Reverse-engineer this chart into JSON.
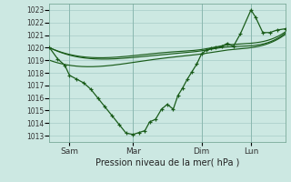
{
  "xlabel": "Pression niveau de la mer( hPa )",
  "background_color": "#cce8e2",
  "grid_color": "#a8ccc8",
  "line_color": "#1a5c1a",
  "ylim": [
    1012.5,
    1023.5
  ],
  "yticks": [
    1013,
    1014,
    1015,
    1016,
    1017,
    1018,
    1019,
    1020,
    1021,
    1022,
    1023
  ],
  "xtick_labels": [
    "Sam",
    "Mar",
    "Dim",
    "Lun"
  ],
  "xtick_positions": [
    0.085,
    0.355,
    0.645,
    0.855
  ],
  "vline_x": [
    0.085,
    0.355,
    0.645,
    0.855
  ],
  "main_x": [
    0.0,
    0.035,
    0.065,
    0.085,
    0.115,
    0.145,
    0.175,
    0.205,
    0.235,
    0.265,
    0.295,
    0.325,
    0.355,
    0.38,
    0.405,
    0.425,
    0.45,
    0.475,
    0.5,
    0.525,
    0.545,
    0.565,
    0.585,
    0.605,
    0.625,
    0.645,
    0.665,
    0.685,
    0.705,
    0.73,
    0.755,
    0.78,
    0.81,
    0.855,
    0.875,
    0.905,
    0.935,
    0.965,
    1.0
  ],
  "main_y": [
    1020.0,
    1019.1,
    1018.6,
    1017.8,
    1017.5,
    1017.2,
    1016.7,
    1016.0,
    1015.3,
    1014.6,
    1013.9,
    1013.2,
    1013.1,
    1013.25,
    1013.4,
    1014.1,
    1014.3,
    1015.1,
    1015.5,
    1015.1,
    1016.2,
    1016.8,
    1017.5,
    1018.1,
    1018.7,
    1019.5,
    1019.8,
    1019.95,
    1020.0,
    1020.1,
    1020.35,
    1020.1,
    1021.1,
    1023.0,
    1022.4,
    1021.2,
    1021.2,
    1021.4,
    1021.5
  ],
  "smooth1_x": [
    0.0,
    0.2,
    0.4,
    0.55,
    0.645,
    0.75,
    0.855,
    1.0
  ],
  "smooth1_y": [
    1020.0,
    1019.1,
    1019.3,
    1019.55,
    1019.75,
    1020.05,
    1020.15,
    1021.15
  ],
  "smooth2_x": [
    0.0,
    0.2,
    0.4,
    0.55,
    0.645,
    0.75,
    0.855,
    1.0
  ],
  "smooth2_y": [
    1020.0,
    1019.2,
    1019.45,
    1019.7,
    1019.85,
    1020.2,
    1020.35,
    1021.25
  ],
  "smooth3_x": [
    0.0,
    0.2,
    0.4,
    0.55,
    0.645,
    0.75,
    0.855,
    1.0
  ],
  "smooth3_y": [
    1019.0,
    1018.5,
    1018.95,
    1019.3,
    1019.5,
    1019.8,
    1020.0,
    1021.05
  ]
}
